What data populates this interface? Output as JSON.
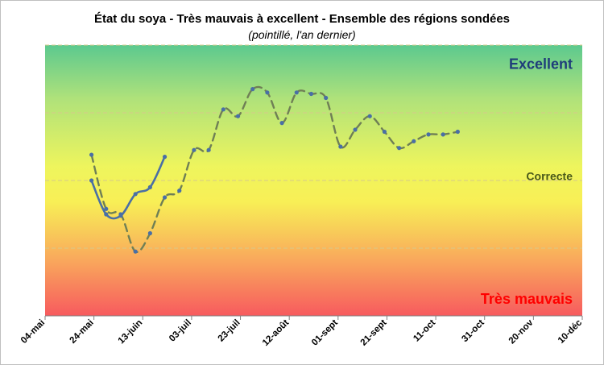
{
  "chart_data": {
    "type": "line",
    "title": "État du soya - Très mauvais à excellent - Ensemble des régions sondées",
    "subtitle": "(pointillé, l'an dernier)",
    "xlabel": "",
    "ylabel": "",
    "ylim": [
      1,
      5
    ],
    "yticks": [
      1,
      2,
      3,
      4,
      5
    ],
    "ytick_labels": [
      "1",
      "2",
      "3",
      "4",
      "5"
    ],
    "xlim": [
      "2023-05-04",
      "2023-12-10"
    ],
    "xticks": [
      {
        "date": "2023-05-04",
        "label": "04-mai"
      },
      {
        "date": "2023-05-24",
        "label": "24-mai"
      },
      {
        "date": "2023-06-13",
        "label": "13-juin"
      },
      {
        "date": "2023-07-03",
        "label": "03-juil"
      },
      {
        "date": "2023-07-23",
        "label": "23-juil"
      },
      {
        "date": "2023-08-12",
        "label": "12-août"
      },
      {
        "date": "2023-09-01",
        "label": "01-sept"
      },
      {
        "date": "2023-09-21",
        "label": "21-sept"
      },
      {
        "date": "2023-10-11",
        "label": "11-oct"
      },
      {
        "date": "2023-10-31",
        "label": "31-oct"
      },
      {
        "date": "2023-11-20",
        "label": "20-nov"
      },
      {
        "date": "2023-12-10",
        "label": "10-déc"
      }
    ],
    "zones": [
      {
        "label": "Excellent",
        "color": "#1f3d7a",
        "y": 4.72
      },
      {
        "label": "Correcte",
        "color": "#4a5a1a",
        "y": 3.08
      },
      {
        "label": "Très mauvais",
        "color": "#ff0000",
        "y": 1.25
      }
    ],
    "grid": true,
    "legend": "none",
    "series": [
      {
        "line_color": "#4a6fa5",
        "marker_color": "#4a6fa5",
        "dash": "solid",
        "points": [
          {
            "x": "2023-05-23",
            "y": 3.0
          },
          {
            "x": "2023-05-29",
            "y": 2.5
          },
          {
            "x": "2023-06-04",
            "y": 2.48
          },
          {
            "x": "2023-06-10",
            "y": 2.8
          },
          {
            "x": "2023-06-16",
            "y": 2.9
          },
          {
            "x": "2023-06-22",
            "y": 3.35
          }
        ]
      },
      {
        "line_color": "#6f7f55",
        "marker_color": "#4a6fa5",
        "dash": "dashed",
        "points": [
          {
            "x": "2023-05-23",
            "y": 3.38
          },
          {
            "x": "2023-05-29",
            "y": 2.58
          },
          {
            "x": "2023-06-04",
            "y": 2.5
          },
          {
            "x": "2023-06-10",
            "y": 1.95
          },
          {
            "x": "2023-06-16",
            "y": 2.22
          },
          {
            "x": "2023-06-22",
            "y": 2.75
          },
          {
            "x": "2023-06-28",
            "y": 2.85
          },
          {
            "x": "2023-07-04",
            "y": 3.45
          },
          {
            "x": "2023-07-10",
            "y": 3.45
          },
          {
            "x": "2023-07-16",
            "y": 4.05
          },
          {
            "x": "2023-07-22",
            "y": 3.95
          },
          {
            "x": "2023-07-28",
            "y": 4.35
          },
          {
            "x": "2023-08-03",
            "y": 4.3
          },
          {
            "x": "2023-08-09",
            "y": 3.85
          },
          {
            "x": "2023-08-15",
            "y": 4.3
          },
          {
            "x": "2023-08-21",
            "y": 4.28
          },
          {
            "x": "2023-08-27",
            "y": 4.22
          },
          {
            "x": "2023-09-02",
            "y": 3.5
          },
          {
            "x": "2023-09-08",
            "y": 3.75
          },
          {
            "x": "2023-09-14",
            "y": 3.95
          },
          {
            "x": "2023-09-20",
            "y": 3.72
          },
          {
            "x": "2023-09-26",
            "y": 3.48
          },
          {
            "x": "2023-10-02",
            "y": 3.58
          },
          {
            "x": "2023-10-08",
            "y": 3.68
          },
          {
            "x": "2023-10-14",
            "y": 3.68
          },
          {
            "x": "2023-10-20",
            "y": 3.72
          }
        ]
      }
    ]
  }
}
